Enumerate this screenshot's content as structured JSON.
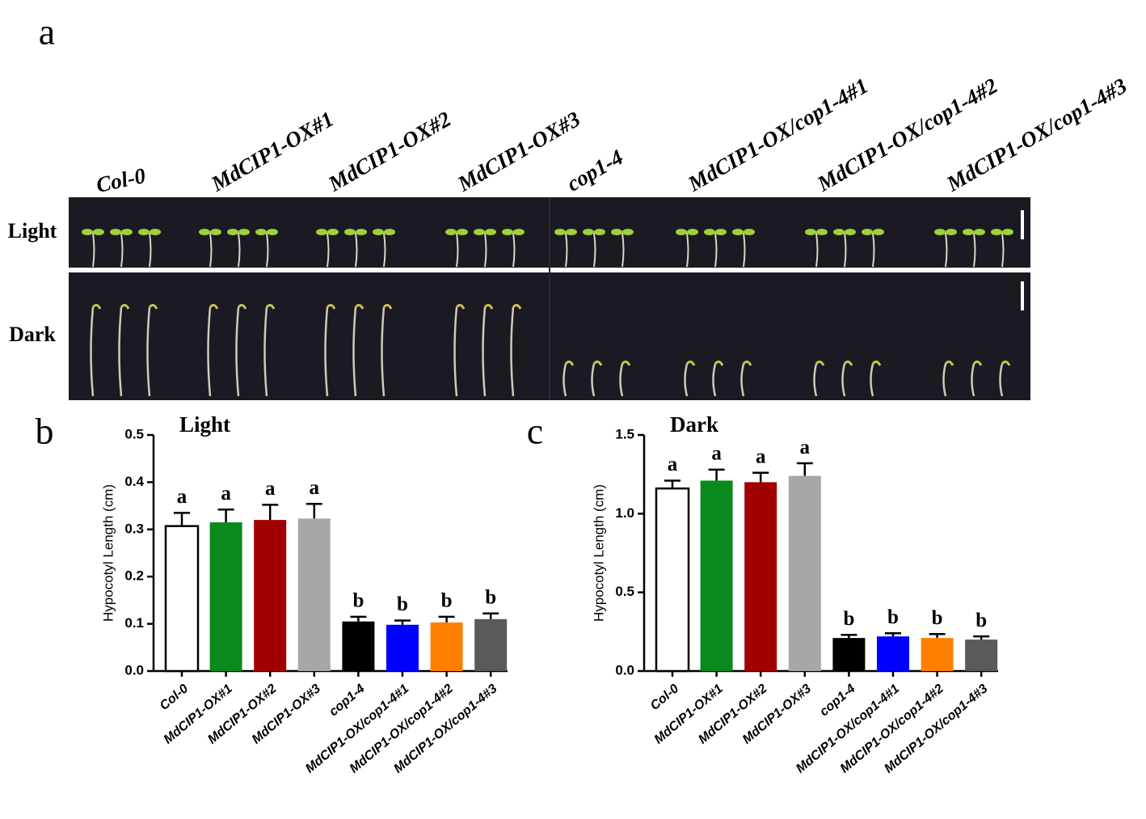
{
  "panel_a": {
    "label": "a",
    "genotypes": [
      "Col-0",
      "MdCIP1-OX#1",
      "MdCIP1-OX#2",
      "MdCIP1-OX#3",
      "cop1-4",
      "MdCIP1-OX/cop1-4#1",
      "MdCIP1-OX/cop1-4#2",
      "MdCIP1-OX/cop1-4#3"
    ],
    "rows": [
      "Light",
      "Dark"
    ]
  },
  "chart_data": [
    {
      "type": "bar",
      "panel_label": "b",
      "title": "Light",
      "y_label": "Hypocotyl Length (cm)",
      "categories": [
        "Col-0",
        "MdCIP1-OX#1",
        "MdCIP1-OX#2",
        "MdCIP1-OX#3",
        "cop1-4",
        "MdCIP1-OX/cop1-4#1",
        "MdCIP1-OX/cop1-4#2",
        "MdCIP1-OX/cop1-4#3"
      ],
      "values": [
        0.307,
        0.315,
        0.32,
        0.323,
        0.105,
        0.098,
        0.103,
        0.11
      ],
      "errors": [
        0.028,
        0.027,
        0.032,
        0.031,
        0.01,
        0.009,
        0.012,
        0.012
      ],
      "significance": [
        "a",
        "a",
        "a",
        "a",
        "b",
        "b",
        "b",
        "b"
      ],
      "colors": [
        "#ffffff",
        "#0a8a1e",
        "#a00000",
        "#a7a7a9",
        "#000000",
        "#0000ff",
        "#ff8000",
        "#5a5a5a"
      ],
      "ylim": [
        0,
        0.5
      ],
      "yticks": [
        {
          "value": 0,
          "label": "0.0"
        },
        0.1,
        0.2,
        0.3,
        0.4,
        0.5
      ]
    },
    {
      "type": "bar",
      "panel_label": "c",
      "title": "Dark",
      "y_label": "Hypocotyl Length (cm)",
      "categories": [
        "Col-0",
        "MdCIP1-OX#1",
        "MdCIP1-OX#2",
        "MdCIP1-OX#3",
        "cop1-4",
        "MdCIP1-OX/cop1-4#1",
        "MdCIP1-OX/cop1-4#2",
        "MdCIP1-OX/cop1-4#3"
      ],
      "values": [
        1.16,
        1.21,
        1.2,
        1.24,
        0.21,
        0.22,
        0.21,
        0.2
      ],
      "errors": [
        0.05,
        0.07,
        0.06,
        0.08,
        0.02,
        0.02,
        0.025,
        0.02
      ],
      "significance": [
        "a",
        "a",
        "a",
        "a",
        "b",
        "b",
        "b",
        "b"
      ],
      "colors": [
        "#ffffff",
        "#0a8a1e",
        "#a00000",
        "#a7a7a9",
        "#000000",
        "#0000ff",
        "#ff8000",
        "#5a5a5a"
      ],
      "ylim": [
        0,
        1.5
      ],
      "yticks": [
        {
          "value": 0,
          "label": "0.0"
        },
        0.5,
        {
          "value": 1,
          "label": "1.0"
        },
        1.5
      ]
    }
  ]
}
